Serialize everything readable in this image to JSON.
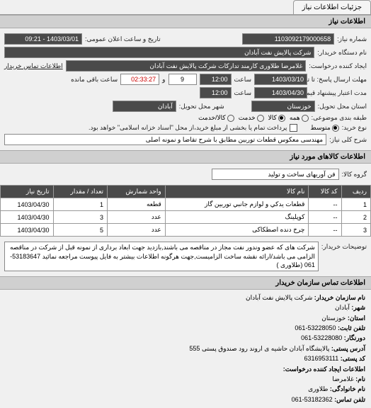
{
  "tabs": {
    "t1": "جزئیات اطلاعات نیاز"
  },
  "section": {
    "info": "اطلاعات نیاز",
    "items": "اطلاعات کالاهای مورد نیاز",
    "contact": "اطلاعات تماس سازمان خریدار"
  },
  "labels": {
    "reqNo": "شماره نیاز:",
    "pubDate": "تاریخ و ساعت اعلان عمومی:",
    "buyerOrg": "نام دستگاه خریدار:",
    "requester": "ایجاد کننده درخواست:",
    "buyerContact": "اطلاعات تماس خریدار",
    "deadlineFrom": "مهلت ارسال پاسخ: تا تاریخ:",
    "hour": "ساعت",
    "remaining": "ساعت باقی مانده",
    "validFrom": "مدت اعتبار پیشنهاد قیمت: تا تاریخ:",
    "deliveryProvince": "استان محل تحویل:",
    "deliveryCity": "شهر محل تحویل:",
    "budgetRow": "طبقه بندی موضوعی:",
    "all": "همه",
    "goods": "کالا",
    "service": "خدمت",
    "goodsService": "کالا/خدمت",
    "buyType": "نوع خرید:",
    "avg": "متوسط",
    "partial": "پرداخت تمام یا بخشی از مبلغ خرید،از محل \"اسناد خزانه اسلامی\" خواهد بود.",
    "generalDesc": "شرح کلی نیاز:",
    "itemGroup": "گروه کالا:",
    "buyerNotes": "توضیحات خریدار:"
  },
  "values": {
    "reqNo": "1103092179000658",
    "pubDate": "1403/03/01 - 09:21",
    "buyerOrg": "شرکت پالایش نفت آبادان",
    "requester": "غلامرضا طلاوری کارمند تدارکات شرکت پالایش نفت آبادان",
    "deadlineDate": "1403/03/10",
    "deadlineHour": "12:00",
    "days": "9",
    "remain": "02:33:27",
    "validDate": "1403/04/30",
    "validHour": "12:00",
    "province": "خوزستان",
    "city": "آبادان",
    "generalDesc": "مهندسی معکوس قطعات توربین مطابق با شرح تقاضا و نمونه اصلی",
    "itemGroup": "فن آوریهای ساخت و تولید",
    "buyerNotes": "شرکت های که عضو وندور نفت مجاز در مناقصه می باشند,بازدید جهت ابعاد برداری از نمونه قبل از شرکت در مناقصه الزامی می باشد/ارائه نقشه ساخت الزامیست,جهت هرگونه اطلاعات بیشتر به فایل پیوست مراجعه نمائید 53183647-061 (طلاوری )"
  },
  "table": {
    "headers": {
      "row": "ردیف",
      "code": "کد کالا",
      "name": "نام کالا",
      "unit": "واحد شمارش",
      "qty": "تعداد / مقدار",
      "date": "تاریخ نیاز"
    },
    "rows": [
      {
        "r": "1",
        "code": "--",
        "name": "قطعات يدكي و لوازم جانبي توربين گاز",
        "unit": "قطعه",
        "qty": "1",
        "date": "1403/04/30"
      },
      {
        "r": "2",
        "code": "--",
        "name": "کوپلینگ",
        "unit": "عدد",
        "qty": "3",
        "date": "1403/04/30"
      },
      {
        "r": "3",
        "code": "--",
        "name": "چرخ دنده اصطکاکی",
        "unit": "عدد",
        "qty": "5",
        "date": "1403/04/30"
      }
    ]
  },
  "contact": {
    "orgLabel": "نام سازمان خریدار:",
    "org": "شرکت پالایش نفت آبادان",
    "cityLabel": "شهر:",
    "city": "آبادان",
    "provLabel": "استان:",
    "prov": "خوزستان",
    "phoneLabel": "تلفن ثابت:",
    "phone": "53228050-061",
    "faxLabel": "دورنگار:",
    "fax": "53228080-061",
    "addrLabel": "آدرس پستی:",
    "addr": "پالایشگاه آبادان حاشیه ی اروند رود صندوق پستی 555",
    "zipLabel": "کد پستی:",
    "zip": "6316953111",
    "reqContactLabel": "اطلاعات ایجاد کننده درخواست:",
    "nameLabel": "نام:",
    "name": "غلامرضا",
    "famLabel": "نام خانوادگی:",
    "fam": "طلاوری",
    "contactPhoneLabel": "تلفن تماس:",
    "contactPhone": "53182362-061"
  }
}
